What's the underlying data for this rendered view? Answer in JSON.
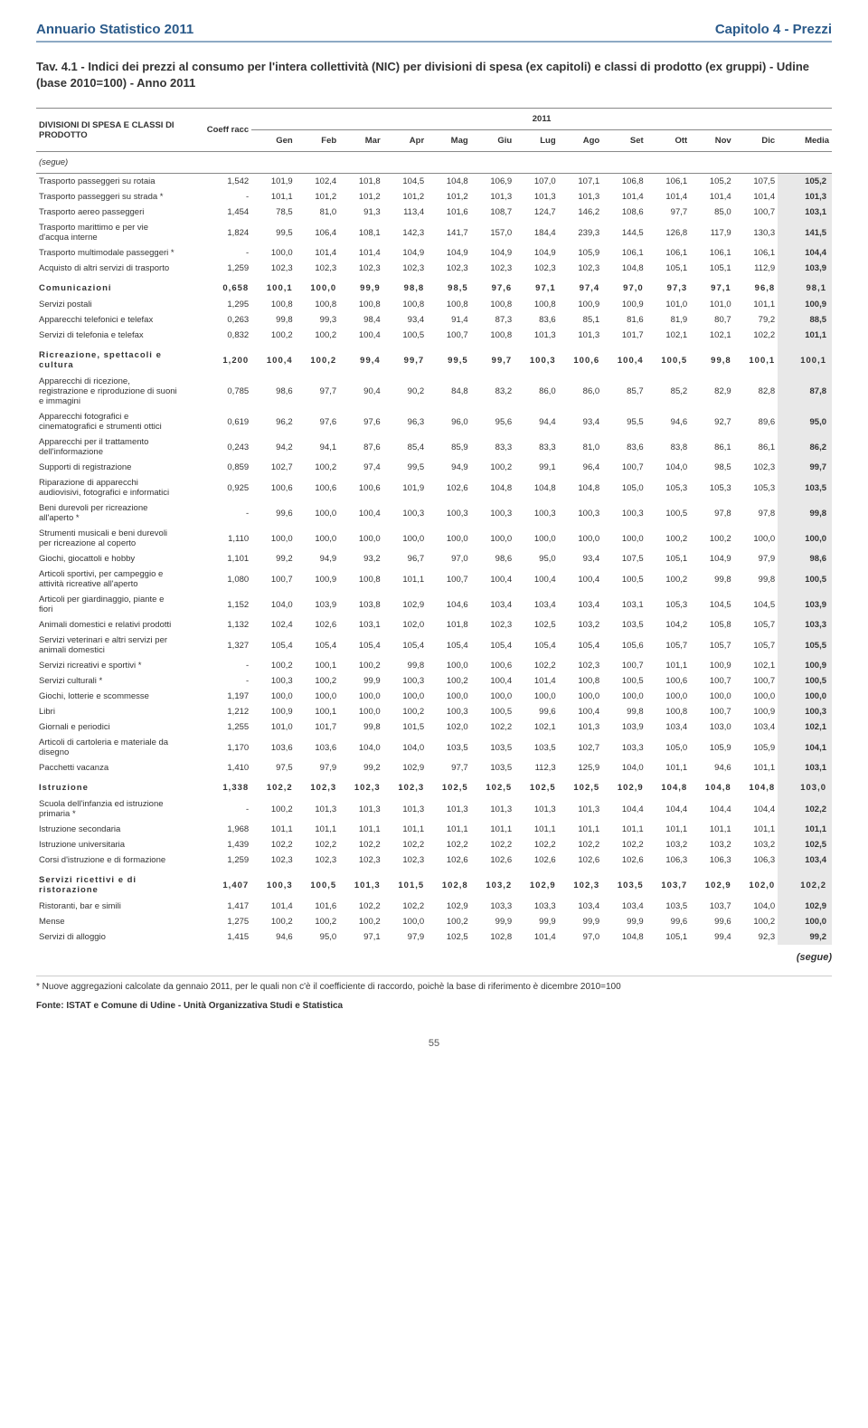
{
  "header": {
    "left": "Annuario Statistico 2011",
    "right": "Capitolo 4 - Prezzi"
  },
  "title": "Tav. 4.1 - Indici dei prezzi al consumo per l'intera collettività (NIC) per divisioni di spesa (ex capitoli) e classi di prodotto (ex gruppi) - Udine (base 2010=100) - Anno 2011",
  "table": {
    "col_group_label": "DIVISIONI DI SPESA E CLASSI DI PRODOTTO",
    "coeff_label": "Coeff racc",
    "year_label": "2011",
    "months": [
      "Gen",
      "Feb",
      "Mar",
      "Apr",
      "Mag",
      "Giu",
      "Lug",
      "Ago",
      "Set",
      "Ott",
      "Nov",
      "Dic",
      "Media"
    ],
    "segue_open": "(segue)",
    "rows": [
      {
        "s": false,
        "l": "Trasporto passeggeri su rotaia",
        "c": "1,542",
        "v": [
          "101,9",
          "102,4",
          "101,8",
          "104,5",
          "104,8",
          "106,9",
          "107,0",
          "107,1",
          "106,8",
          "106,1",
          "105,2",
          "107,5",
          "105,2"
        ]
      },
      {
        "s": false,
        "l": "Trasporto passeggeri su strada *",
        "c": "-",
        "v": [
          "101,1",
          "101,2",
          "101,2",
          "101,2",
          "101,2",
          "101,3",
          "101,3",
          "101,3",
          "101,4",
          "101,4",
          "101,4",
          "101,4",
          "101,3"
        ]
      },
      {
        "s": false,
        "l": "Trasporto aereo passeggeri",
        "c": "1,454",
        "v": [
          "78,5",
          "81,0",
          "91,3",
          "113,4",
          "101,6",
          "108,7",
          "124,7",
          "146,2",
          "108,6",
          "97,7",
          "85,0",
          "100,7",
          "103,1"
        ]
      },
      {
        "s": false,
        "l": "Trasporto marittimo e per vie d'acqua interne",
        "c": "1,824",
        "v": [
          "99,5",
          "106,4",
          "108,1",
          "142,3",
          "141,7",
          "157,0",
          "184,4",
          "239,3",
          "144,5",
          "126,8",
          "117,9",
          "130,3",
          "141,5"
        ]
      },
      {
        "s": false,
        "l": "Trasporto multimodale passeggeri *",
        "c": "-",
        "v": [
          "100,0",
          "101,4",
          "101,4",
          "104,9",
          "104,9",
          "104,9",
          "104,9",
          "105,9",
          "106,1",
          "106,1",
          "106,1",
          "106,1",
          "104,4"
        ]
      },
      {
        "s": false,
        "l": "Acquisto di altri servizi di trasporto",
        "c": "1,259",
        "v": [
          "102,3",
          "102,3",
          "102,3",
          "102,3",
          "102,3",
          "102,3",
          "102,3",
          "102,3",
          "104,8",
          "105,1",
          "105,1",
          "112,9",
          "103,9"
        ]
      },
      {
        "s": true,
        "l": "Comunicazioni",
        "c": "0,658",
        "v": [
          "100,1",
          "100,0",
          "99,9",
          "98,8",
          "98,5",
          "97,6",
          "97,1",
          "97,4",
          "97,0",
          "97,3",
          "97,1",
          "96,8",
          "98,1"
        ]
      },
      {
        "s": false,
        "l": "Servizi postali",
        "c": "1,295",
        "v": [
          "100,8",
          "100,8",
          "100,8",
          "100,8",
          "100,8",
          "100,8",
          "100,8",
          "100,9",
          "100,9",
          "101,0",
          "101,0",
          "101,1",
          "100,9"
        ]
      },
      {
        "s": false,
        "l": "Apparecchi telefonici e telefax",
        "c": "0,263",
        "v": [
          "99,8",
          "99,3",
          "98,4",
          "93,4",
          "91,4",
          "87,3",
          "83,6",
          "85,1",
          "81,6",
          "81,9",
          "80,7",
          "79,2",
          "88,5"
        ]
      },
      {
        "s": false,
        "l": "Servizi di telefonia e telefax",
        "c": "0,832",
        "v": [
          "100,2",
          "100,2",
          "100,4",
          "100,5",
          "100,7",
          "100,8",
          "101,3",
          "101,3",
          "101,7",
          "102,1",
          "102,1",
          "102,2",
          "101,1"
        ]
      },
      {
        "s": true,
        "l": "Ricreazione, spettacoli e cultura",
        "c": "1,200",
        "v": [
          "100,4",
          "100,2",
          "99,4",
          "99,7",
          "99,5",
          "99,7",
          "100,3",
          "100,6",
          "100,4",
          "100,5",
          "99,8",
          "100,1",
          "100,1"
        ]
      },
      {
        "s": false,
        "l": "Apparecchi di ricezione, registrazione e riproduzione di suoni e immagini",
        "c": "0,785",
        "v": [
          "98,6",
          "97,7",
          "90,4",
          "90,2",
          "84,8",
          "83,2",
          "86,0",
          "86,0",
          "85,7",
          "85,2",
          "82,9",
          "82,8",
          "87,8"
        ]
      },
      {
        "s": false,
        "l": "Apparecchi fotografici e cinematografici e strumenti ottici",
        "c": "0,619",
        "v": [
          "96,2",
          "97,6",
          "97,6",
          "96,3",
          "96,0",
          "95,6",
          "94,4",
          "93,4",
          "95,5",
          "94,6",
          "92,7",
          "89,6",
          "95,0"
        ]
      },
      {
        "s": false,
        "l": "Apparecchi per il trattamento dell'informazione",
        "c": "0,243",
        "v": [
          "94,2",
          "94,1",
          "87,6",
          "85,4",
          "85,9",
          "83,3",
          "83,3",
          "81,0",
          "83,6",
          "83,8",
          "86,1",
          "86,1",
          "86,2"
        ]
      },
      {
        "s": false,
        "l": "Supporti di registrazione",
        "c": "0,859",
        "v": [
          "102,7",
          "100,2",
          "97,4",
          "99,5",
          "94,9",
          "100,2",
          "99,1",
          "96,4",
          "100,7",
          "104,0",
          "98,5",
          "102,3",
          "99,7"
        ]
      },
      {
        "s": false,
        "l": "Riparazione di apparecchi audiovisivi, fotografici e informatici",
        "c": "0,925",
        "v": [
          "100,6",
          "100,6",
          "100,6",
          "101,9",
          "102,6",
          "104,8",
          "104,8",
          "104,8",
          "105,0",
          "105,3",
          "105,3",
          "105,3",
          "103,5"
        ]
      },
      {
        "s": false,
        "l": "Beni durevoli per ricreazione all'aperto *",
        "c": "-",
        "v": [
          "99,6",
          "100,0",
          "100,4",
          "100,3",
          "100,3",
          "100,3",
          "100,3",
          "100,3",
          "100,3",
          "100,5",
          "97,8",
          "97,8",
          "99,8"
        ]
      },
      {
        "s": false,
        "l": "Strumenti musicali e beni durevoli per ricreazione al coperto",
        "c": "1,110",
        "v": [
          "100,0",
          "100,0",
          "100,0",
          "100,0",
          "100,0",
          "100,0",
          "100,0",
          "100,0",
          "100,0",
          "100,2",
          "100,2",
          "100,0",
          "100,0"
        ]
      },
      {
        "s": false,
        "l": "Giochi, giocattoli e hobby",
        "c": "1,101",
        "v": [
          "99,2",
          "94,9",
          "93,2",
          "96,7",
          "97,0",
          "98,6",
          "95,0",
          "93,4",
          "107,5",
          "105,1",
          "104,9",
          "97,9",
          "98,6"
        ]
      },
      {
        "s": false,
        "l": "Articoli sportivi, per campeggio e attività ricreative all'aperto",
        "c": "1,080",
        "v": [
          "100,7",
          "100,9",
          "100,8",
          "101,1",
          "100,7",
          "100,4",
          "100,4",
          "100,4",
          "100,5",
          "100,2",
          "99,8",
          "99,8",
          "100,5"
        ]
      },
      {
        "s": false,
        "l": "Articoli per giardinaggio, piante e fiori",
        "c": "1,152",
        "v": [
          "104,0",
          "103,9",
          "103,8",
          "102,9",
          "104,6",
          "103,4",
          "103,4",
          "103,4",
          "103,1",
          "105,3",
          "104,5",
          "104,5",
          "103,9"
        ]
      },
      {
        "s": false,
        "l": "Animali domestici e relativi prodotti",
        "c": "1,132",
        "v": [
          "102,4",
          "102,6",
          "103,1",
          "102,0",
          "101,8",
          "102,3",
          "102,5",
          "103,2",
          "103,5",
          "104,2",
          "105,8",
          "105,7",
          "103,3"
        ]
      },
      {
        "s": false,
        "l": "Servizi veterinari e altri servizi per animali domestici",
        "c": "1,327",
        "v": [
          "105,4",
          "105,4",
          "105,4",
          "105,4",
          "105,4",
          "105,4",
          "105,4",
          "105,4",
          "105,6",
          "105,7",
          "105,7",
          "105,7",
          "105,5"
        ]
      },
      {
        "s": false,
        "l": "Servizi ricreativi e sportivi *",
        "c": "-",
        "v": [
          "100,2",
          "100,1",
          "100,2",
          "99,8",
          "100,0",
          "100,6",
          "102,2",
          "102,3",
          "100,7",
          "101,1",
          "100,9",
          "102,1",
          "100,9"
        ]
      },
      {
        "s": false,
        "l": "Servizi culturali *",
        "c": "-",
        "v": [
          "100,3",
          "100,2",
          "99,9",
          "100,3",
          "100,2",
          "100,4",
          "101,4",
          "100,8",
          "100,5",
          "100,6",
          "100,7",
          "100,7",
          "100,5"
        ]
      },
      {
        "s": false,
        "l": "Giochi, lotterie e scommesse",
        "c": "1,197",
        "v": [
          "100,0",
          "100,0",
          "100,0",
          "100,0",
          "100,0",
          "100,0",
          "100,0",
          "100,0",
          "100,0",
          "100,0",
          "100,0",
          "100,0",
          "100,0"
        ]
      },
      {
        "s": false,
        "l": "Libri",
        "c": "1,212",
        "v": [
          "100,9",
          "100,1",
          "100,0",
          "100,2",
          "100,3",
          "100,5",
          "99,6",
          "100,4",
          "99,8",
          "100,8",
          "100,7",
          "100,9",
          "100,3"
        ]
      },
      {
        "s": false,
        "l": "Giornali e periodici",
        "c": "1,255",
        "v": [
          "101,0",
          "101,7",
          "99,8",
          "101,5",
          "102,0",
          "102,2",
          "102,1",
          "101,3",
          "103,9",
          "103,4",
          "103,0",
          "103,4",
          "102,1"
        ]
      },
      {
        "s": false,
        "l": "Articoli di cartoleria e materiale da disegno",
        "c": "1,170",
        "v": [
          "103,6",
          "103,6",
          "104,0",
          "104,0",
          "103,5",
          "103,5",
          "103,5",
          "102,7",
          "103,3",
          "105,0",
          "105,9",
          "105,9",
          "104,1"
        ]
      },
      {
        "s": false,
        "l": "Pacchetti vacanza",
        "c": "1,410",
        "v": [
          "97,5",
          "97,9",
          "99,2",
          "102,9",
          "97,7",
          "103,5",
          "112,3",
          "125,9",
          "104,0",
          "101,1",
          "94,6",
          "101,1",
          "103,1"
        ]
      },
      {
        "s": true,
        "l": "Istruzione",
        "c": "1,338",
        "v": [
          "102,2",
          "102,3",
          "102,3",
          "102,3",
          "102,5",
          "102,5",
          "102,5",
          "102,5",
          "102,9",
          "104,8",
          "104,8",
          "104,8",
          "103,0"
        ]
      },
      {
        "s": false,
        "l": "Scuola dell'infanzia ed istruzione primaria *",
        "c": "-",
        "v": [
          "100,2",
          "101,3",
          "101,3",
          "101,3",
          "101,3",
          "101,3",
          "101,3",
          "101,3",
          "104,4",
          "104,4",
          "104,4",
          "104,4",
          "102,2"
        ]
      },
      {
        "s": false,
        "l": "Istruzione secondaria",
        "c": "1,968",
        "v": [
          "101,1",
          "101,1",
          "101,1",
          "101,1",
          "101,1",
          "101,1",
          "101,1",
          "101,1",
          "101,1",
          "101,1",
          "101,1",
          "101,1",
          "101,1"
        ]
      },
      {
        "s": false,
        "l": "Istruzione universitaria",
        "c": "1,439",
        "v": [
          "102,2",
          "102,2",
          "102,2",
          "102,2",
          "102,2",
          "102,2",
          "102,2",
          "102,2",
          "102,2",
          "103,2",
          "103,2",
          "103,2",
          "102,5"
        ]
      },
      {
        "s": false,
        "l": "Corsi d'istruzione e di formazione",
        "c": "1,259",
        "v": [
          "102,3",
          "102,3",
          "102,3",
          "102,3",
          "102,6",
          "102,6",
          "102,6",
          "102,6",
          "102,6",
          "106,3",
          "106,3",
          "106,3",
          "103,4"
        ]
      },
      {
        "s": true,
        "l": "Servizi ricettivi e di ristorazione",
        "c": "1,407",
        "v": [
          "100,3",
          "100,5",
          "101,3",
          "101,5",
          "102,8",
          "103,2",
          "102,9",
          "102,3",
          "103,5",
          "103,7",
          "102,9",
          "102,0",
          "102,2"
        ]
      },
      {
        "s": false,
        "l": "Ristoranti, bar e simili",
        "c": "1,417",
        "v": [
          "101,4",
          "101,6",
          "102,2",
          "102,2",
          "102,9",
          "103,3",
          "103,3",
          "103,4",
          "103,4",
          "103,5",
          "103,7",
          "104,0",
          "102,9"
        ]
      },
      {
        "s": false,
        "l": "Mense",
        "c": "1,275",
        "v": [
          "100,2",
          "100,2",
          "100,2",
          "100,0",
          "100,2",
          "99,9",
          "99,9",
          "99,9",
          "99,9",
          "99,6",
          "99,6",
          "100,2",
          "100,0"
        ]
      },
      {
        "s": false,
        "l": "Servizi di alloggio",
        "c": "1,415",
        "v": [
          "94,6",
          "95,0",
          "97,1",
          "97,9",
          "102,5",
          "102,8",
          "101,4",
          "97,0",
          "104,8",
          "105,1",
          "99,4",
          "92,3",
          "99,2"
        ]
      }
    ],
    "segue_close": "(segue)"
  },
  "footnote": "* Nuove aggregazioni calcolate da gennaio 2011, per le quali non c'è il coefficiente di raccordo, poichè la base di riferimento è dicembre 2010=100",
  "source": "Fonte: ISTAT e Comune di Udine - Unità Organizzativa Studi e Statistica",
  "page_number": "55",
  "colors": {
    "header_blue": "#2a5a8a",
    "rule_blue": "#8da9c4",
    "media_bg": "#e8e8e8"
  }
}
